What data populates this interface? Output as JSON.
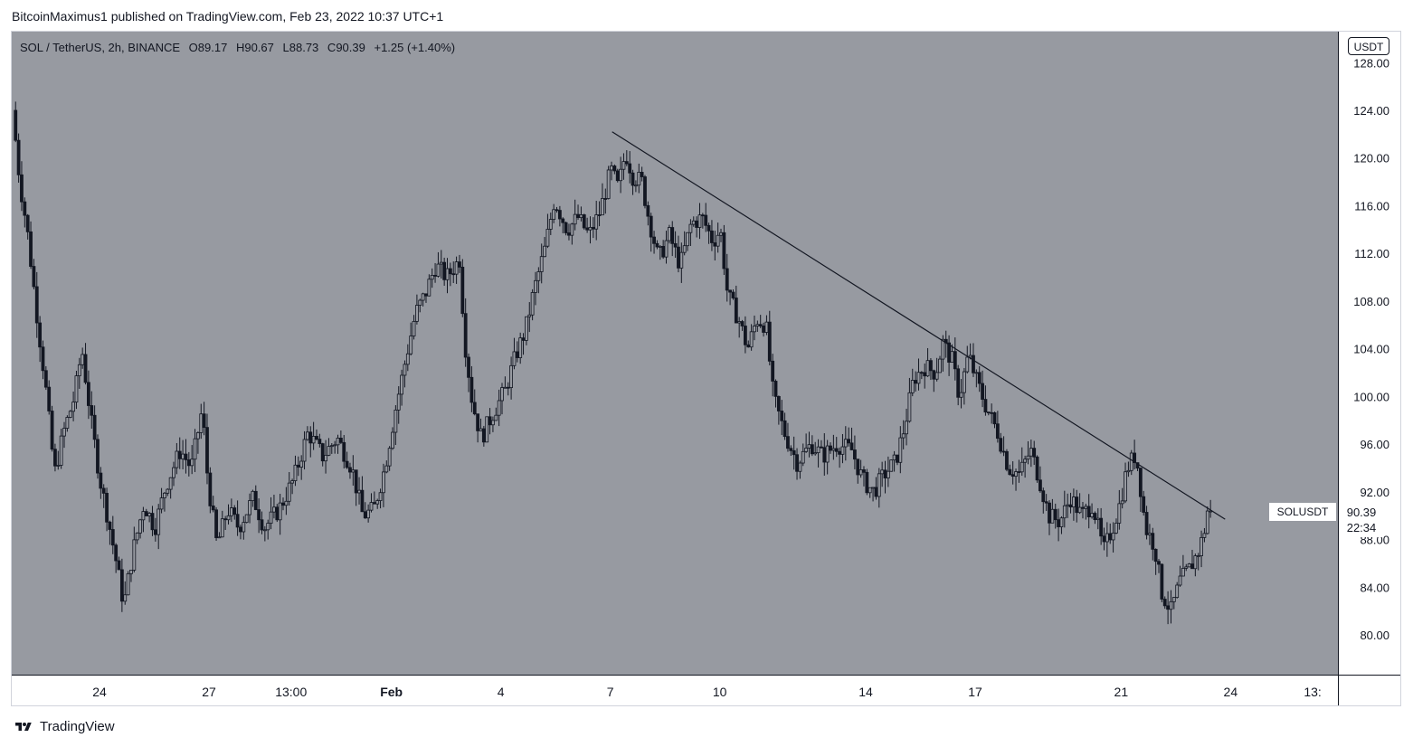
{
  "header": {
    "publish_text": "BitcoinMaximus1 published on TradingView.com, Feb 23, 2022 10:37 UTC+1"
  },
  "legend": {
    "symbol": "SOL / TetherUS, 2h, BINANCE",
    "open_label": "O",
    "open": "89.17",
    "high_label": "H",
    "high": "90.67",
    "low_label": "L",
    "low": "88.73",
    "close_label": "C",
    "close": "90.39",
    "change": "+1.25 (+1.40%)"
  },
  "currency": "USDT",
  "symbol_tag": "SOLUSDT",
  "last_price": {
    "price": "90.39",
    "countdown": "22:34"
  },
  "footer": {
    "brand": "TradingView"
  },
  "colors": {
    "plot_bg": "#979aa1",
    "candle": "#131722",
    "trendline": "#131722"
  },
  "chart_data": {
    "type": "candlestick",
    "y_ticks": [
      "128.00",
      "124.00",
      "120.00",
      "116.00",
      "112.00",
      "108.00",
      "104.00",
      "100.00",
      "96.00",
      "92.00",
      "88.00",
      "84.00",
      "80.00"
    ],
    "ylim": [
      76.8,
      130.2
    ],
    "x_ticks": [
      {
        "label": "24",
        "day": 24.0
      },
      {
        "label": "27",
        "day": 27.0
      },
      {
        "label": "13:00",
        "day": 29.25
      },
      {
        "label": "Feb",
        "day": 32.0
      },
      {
        "label": "4",
        "day": 35.0
      },
      {
        "label": "7",
        "day": 38.0
      },
      {
        "label": "10",
        "day": 41.0
      },
      {
        "label": "14",
        "day": 45.0
      },
      {
        "label": "17",
        "day": 48.0
      },
      {
        "label": "21",
        "day": 52.0
      },
      {
        "label": "24",
        "day": 55.0
      },
      {
        "label": "13:",
        "day": 57.25
      }
    ],
    "x_note": "day = January day number; Feb dates continue from 32",
    "anchors": [
      {
        "day": 21.7,
        "price": 124.0
      },
      {
        "day": 21.9,
        "price": 118.0
      },
      {
        "day": 22.1,
        "price": 114.0
      },
      {
        "day": 22.4,
        "price": 106.0
      },
      {
        "day": 22.6,
        "price": 101.0
      },
      {
        "day": 22.85,
        "price": 93.5
      },
      {
        "day": 23.1,
        "price": 97.0
      },
      {
        "day": 23.4,
        "price": 100.0
      },
      {
        "day": 23.6,
        "price": 104.0
      },
      {
        "day": 23.85,
        "price": 98.0
      },
      {
        "day": 24.1,
        "price": 93.0
      },
      {
        "day": 24.3,
        "price": 90.0
      },
      {
        "day": 24.55,
        "price": 86.0
      },
      {
        "day": 24.75,
        "price": 82.5
      },
      {
        "day": 25.0,
        "price": 87.0
      },
      {
        "day": 25.3,
        "price": 91.0
      },
      {
        "day": 25.6,
        "price": 89.0
      },
      {
        "day": 25.9,
        "price": 92.5
      },
      {
        "day": 26.3,
        "price": 95.5
      },
      {
        "day": 26.6,
        "price": 94.0
      },
      {
        "day": 26.9,
        "price": 99.0
      },
      {
        "day": 27.05,
        "price": 93.0
      },
      {
        "day": 27.3,
        "price": 87.5
      },
      {
        "day": 27.6,
        "price": 90.5
      },
      {
        "day": 27.9,
        "price": 89.0
      },
      {
        "day": 28.3,
        "price": 91.5
      },
      {
        "day": 28.6,
        "price": 89.0
      },
      {
        "day": 29.0,
        "price": 90.5
      },
      {
        "day": 29.4,
        "price": 93.0
      },
      {
        "day": 29.8,
        "price": 97.0
      },
      {
        "day": 30.2,
        "price": 95.0
      },
      {
        "day": 30.6,
        "price": 96.5
      },
      {
        "day": 31.0,
        "price": 94.0
      },
      {
        "day": 31.3,
        "price": 90.0
      },
      {
        "day": 31.6,
        "price": 90.5
      },
      {
        "day": 31.9,
        "price": 94.0
      },
      {
        "day": 32.2,
        "price": 99.0
      },
      {
        "day": 32.5,
        "price": 103.5
      },
      {
        "day": 32.75,
        "price": 107.0
      },
      {
        "day": 33.0,
        "price": 108.5
      },
      {
        "day": 33.3,
        "price": 111.0
      },
      {
        "day": 33.6,
        "price": 110.0
      },
      {
        "day": 33.95,
        "price": 111.5
      },
      {
        "day": 34.1,
        "price": 104.5
      },
      {
        "day": 34.3,
        "price": 99.5
      },
      {
        "day": 34.55,
        "price": 96.5
      },
      {
        "day": 34.85,
        "price": 98.5
      },
      {
        "day": 35.2,
        "price": 100.5
      },
      {
        "day": 35.5,
        "price": 103.5
      },
      {
        "day": 35.75,
        "price": 105.5
      },
      {
        "day": 36.0,
        "price": 109.0
      },
      {
        "day": 36.3,
        "price": 112.5
      },
      {
        "day": 36.55,
        "price": 116.5
      },
      {
        "day": 36.9,
        "price": 114.0
      },
      {
        "day": 37.2,
        "price": 115.0
      },
      {
        "day": 37.5,
        "price": 113.5
      },
      {
        "day": 37.8,
        "price": 115.5
      },
      {
        "day": 38.1,
        "price": 119.0
      },
      {
        "day": 38.3,
        "price": 117.5
      },
      {
        "day": 38.5,
        "price": 120.5
      },
      {
        "day": 38.7,
        "price": 118.5
      },
      {
        "day": 38.95,
        "price": 118.0
      },
      {
        "day": 39.1,
        "price": 115.5
      },
      {
        "day": 39.4,
        "price": 111.5
      },
      {
        "day": 39.7,
        "price": 113.5
      },
      {
        "day": 40.0,
        "price": 111.0
      },
      {
        "day": 40.3,
        "price": 114.5
      },
      {
        "day": 40.6,
        "price": 115.0
      },
      {
        "day": 40.9,
        "price": 113.0
      },
      {
        "day": 41.1,
        "price": 114.0
      },
      {
        "day": 41.3,
        "price": 108.5
      },
      {
        "day": 41.6,
        "price": 106.5
      },
      {
        "day": 41.85,
        "price": 104.0
      },
      {
        "day": 42.1,
        "price": 106.5
      },
      {
        "day": 42.35,
        "price": 106.0
      },
      {
        "day": 42.55,
        "price": 100.0
      },
      {
        "day": 42.85,
        "price": 97.0
      },
      {
        "day": 43.2,
        "price": 94.5
      },
      {
        "day": 43.6,
        "price": 96.0
      },
      {
        "day": 43.9,
        "price": 95.0
      },
      {
        "day": 44.3,
        "price": 96.0
      },
      {
        "day": 44.7,
        "price": 95.5
      },
      {
        "day": 45.0,
        "price": 93.0
      },
      {
        "day": 45.3,
        "price": 92.0
      },
      {
        "day": 45.6,
        "price": 93.5
      },
      {
        "day": 45.9,
        "price": 94.5
      },
      {
        "day": 46.15,
        "price": 97.5
      },
      {
        "day": 46.4,
        "price": 101.5
      },
      {
        "day": 46.7,
        "price": 102.5
      },
      {
        "day": 47.0,
        "price": 102.0
      },
      {
        "day": 47.2,
        "price": 104.5
      },
      {
        "day": 47.45,
        "price": 103.0
      },
      {
        "day": 47.65,
        "price": 100.0
      },
      {
        "day": 47.9,
        "price": 103.5
      },
      {
        "day": 48.1,
        "price": 101.5
      },
      {
        "day": 48.4,
        "price": 99.0
      },
      {
        "day": 48.7,
        "price": 97.0
      },
      {
        "day": 49.0,
        "price": 94.0
      },
      {
        "day": 49.3,
        "price": 93.5
      },
      {
        "day": 49.6,
        "price": 95.5
      },
      {
        "day": 49.85,
        "price": 93.0
      },
      {
        "day": 50.1,
        "price": 90.0
      },
      {
        "day": 50.4,
        "price": 89.5
      },
      {
        "day": 50.7,
        "price": 91.5
      },
      {
        "day": 51.0,
        "price": 90.0
      },
      {
        "day": 51.3,
        "price": 91.0
      },
      {
        "day": 51.6,
        "price": 87.0
      },
      {
        "day": 51.85,
        "price": 89.0
      },
      {
        "day": 52.05,
        "price": 91.0
      },
      {
        "day": 52.25,
        "price": 94.0
      },
      {
        "day": 52.45,
        "price": 95.0
      },
      {
        "day": 52.55,
        "price": 94.0
      },
      {
        "day": 52.75,
        "price": 89.0
      },
      {
        "day": 53.0,
        "price": 87.5
      },
      {
        "day": 53.2,
        "price": 83.5
      },
      {
        "day": 53.45,
        "price": 82.0
      },
      {
        "day": 53.7,
        "price": 84.5
      },
      {
        "day": 53.95,
        "price": 85.5
      },
      {
        "day": 54.2,
        "price": 87.0
      },
      {
        "day": 54.35,
        "price": 88.5
      },
      {
        "day": 54.45,
        "price": 90.39
      }
    ],
    "trendline": {
      "start": {
        "day": 38.05,
        "price": 122.2
      },
      "end": {
        "day": 54.85,
        "price": 89.7
      }
    }
  }
}
